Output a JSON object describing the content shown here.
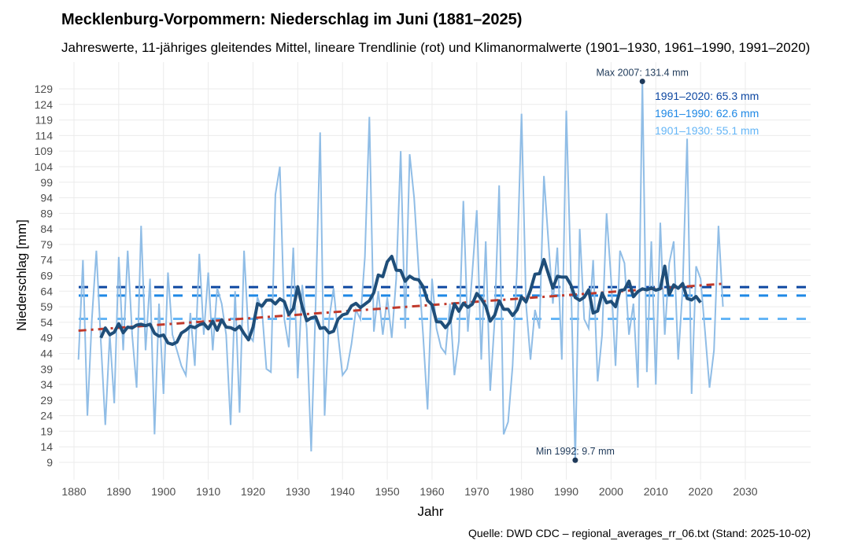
{
  "chart_data": {
    "type": "line",
    "title": "Mecklenburg-Vorpommern: Niederschlag im Juni (1881–2025)",
    "subtitle": "Jahreswerte, 11-jähriges gleitendes Mittel, lineare Trendlinie (rot) und Klimanormalwerte (1901–1930, 1961–1990, 1991–2020)",
    "xlabel": "Jahr",
    "ylabel": "Niederschlag [mm]",
    "caption": "Quelle: DWD CDC – regional_averages_rr_06.txt (Stand: 2025-10-02)",
    "xlim": [
      1875,
      2045
    ],
    "ylim": [
      3.4,
      133.5
    ],
    "x_ticks": [
      1880,
      1890,
      1900,
      1910,
      1920,
      1930,
      1940,
      1950,
      1960,
      1970,
      1980,
      1990,
      2000,
      2010,
      2020,
      2030
    ],
    "y_ticks": [
      9,
      14,
      19,
      24,
      29,
      34,
      39,
      44,
      49,
      54,
      59,
      64,
      69,
      74,
      79,
      84,
      89,
      94,
      99,
      104,
      109,
      114,
      119,
      124,
      129
    ],
    "grid": true,
    "colors": {
      "annual": "#90bde6",
      "moving_average": "#1f4e79",
      "trend": "#c0392b",
      "extreme_point": "#1f3a5a"
    },
    "moving_average_window": 11,
    "years_start": 1881,
    "annual_values": [
      42,
      74,
      24,
      55,
      77,
      48,
      21,
      50,
      28,
      75,
      45,
      77,
      50,
      33,
      85,
      45,
      68,
      18,
      60,
      31,
      70,
      50,
      45,
      40,
      37,
      57,
      40,
      76,
      50,
      70,
      45,
      65,
      60,
      50,
      21,
      64,
      25,
      77,
      50,
      48,
      62,
      58,
      39,
      38,
      95,
      104,
      55,
      46,
      78,
      36,
      66,
      52,
      12.5,
      60,
      115,
      24,
      55,
      65,
      50,
      37,
      39,
      47,
      58,
      55,
      75,
      120,
      51,
      64,
      50,
      62,
      49,
      68,
      109,
      52,
      108,
      94,
      71,
      50,
      26,
      68,
      52,
      46,
      44,
      60,
      37,
      48,
      93,
      51,
      70,
      90,
      42,
      80,
      32,
      55,
      98,
      18,
      22,
      40,
      72,
      121,
      60,
      42,
      58,
      52,
      101,
      80,
      60,
      78,
      42,
      122,
      70,
      9.7,
      84,
      55,
      52,
      74,
      35,
      50,
      89,
      68,
      40,
      77,
      73,
      50,
      60,
      33,
      131.4,
      38,
      80,
      34,
      86,
      50,
      73,
      80,
      42,
      65,
      113,
      31,
      72,
      68,
      51,
      33,
      45,
      85,
      59
    ],
    "normals": [
      {
        "label": "1991–2020: 65.3 mm",
        "value": 65.3,
        "color": "#0d47a1"
      },
      {
        "label": "1961–1990: 62.6 mm",
        "value": 62.6,
        "color": "#1e88e5"
      },
      {
        "label": "1901–1930: 55.1 mm",
        "value": 55.1,
        "color": "#64b5f6"
      }
    ],
    "annotations": [
      {
        "label": "Max 2007: 131.4 mm",
        "year": 2007,
        "value": 131.4
      },
      {
        "label": "Min 1992: 9.7 mm",
        "year": 1992,
        "value": 9.7
      }
    ]
  }
}
